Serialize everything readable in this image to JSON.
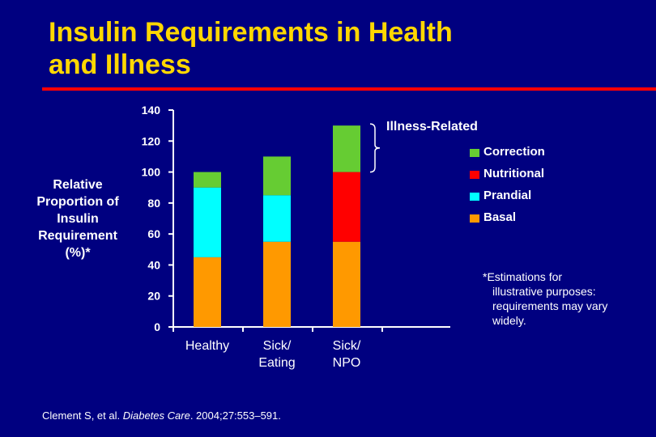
{
  "slide": {
    "title_line1": "Insulin Requirements in Health",
    "title_line2": "and Illness",
    "footnote_line1": "*Estimations for",
    "footnote_line2": "illustrative purposes:",
    "footnote_line3": "requirements may vary",
    "footnote_line4": "widely.",
    "citation_pre": "Clement S, et al. ",
    "citation_journal": "Diabetes Care",
    "citation_post": ". 2004;27:553–591."
  },
  "colors": {
    "background": "#000080",
    "title": "#FFD700",
    "rule": "#FF0000",
    "basal": "#FF9900",
    "prandial": "#00FFFF",
    "nutritional": "#FF0000",
    "correction": "#66CC33"
  },
  "chart_data": {
    "type": "bar",
    "stacked": true,
    "ylabel_lines": [
      "Relative",
      "Proportion of",
      "Insulin",
      "Requirement",
      "(%)*"
    ],
    "ylim": [
      0,
      140
    ],
    "yticks": [
      0,
      20,
      40,
      60,
      80,
      100,
      120,
      140
    ],
    "categories": [
      {
        "lines": [
          "Healthy"
        ]
      },
      {
        "lines": [
          "Sick/",
          "Eating"
        ]
      },
      {
        "lines": [
          "Sick/",
          "NPO"
        ]
      }
    ],
    "series": [
      {
        "name": "Basal",
        "color": "#FF9900",
        "values": [
          45,
          55,
          55
        ]
      },
      {
        "name": "Prandial",
        "color": "#00FFFF",
        "values": [
          45,
          30,
          0
        ]
      },
      {
        "name": "Nutritional",
        "color": "#FF0000",
        "values": [
          0,
          0,
          45
        ]
      },
      {
        "name": "Correction",
        "color": "#66CC33",
        "values": [
          10,
          25,
          30
        ]
      }
    ],
    "legend_order": [
      "Correction",
      "Nutritional",
      "Prandial",
      "Basal"
    ],
    "legend_position": "right",
    "annotation": "Illness-Related",
    "grid": false
  }
}
